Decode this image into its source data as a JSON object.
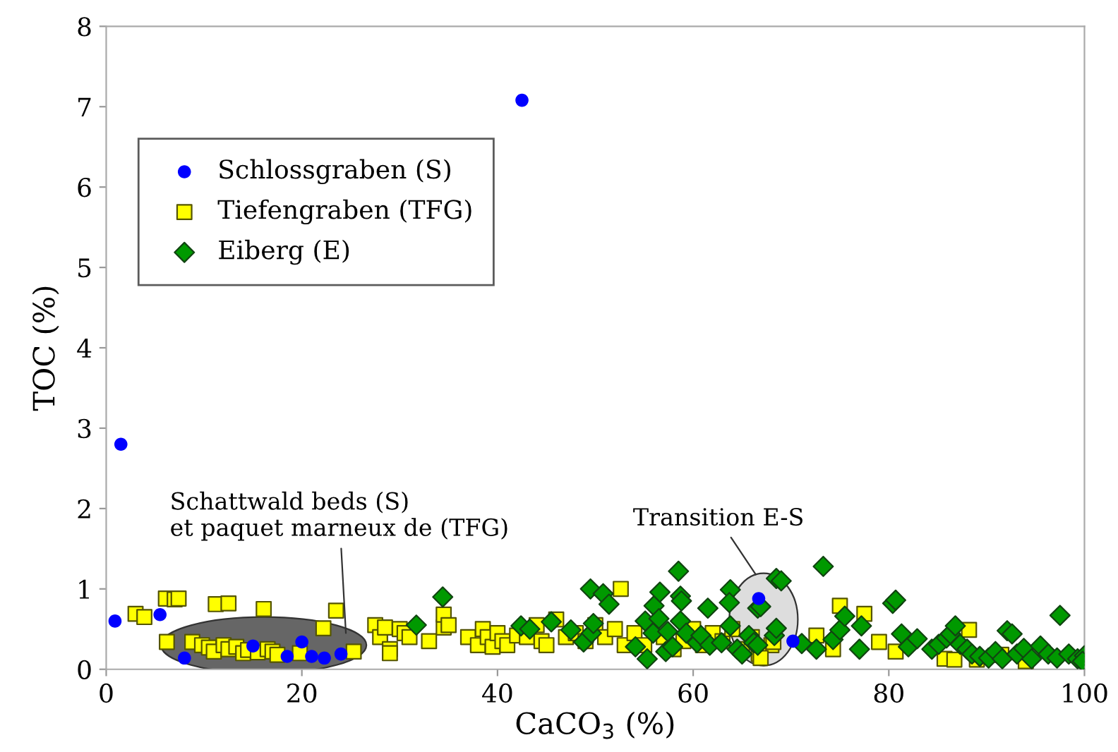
{
  "chart_data": {
    "type": "scatter",
    "xlabel": "CaCO$_{3}$ (%)",
    "ylabel": "TOC (%)",
    "xlim": [
      0,
      100
    ],
    "ylim": [
      0,
      8
    ],
    "xticks": [
      0,
      20,
      40,
      60,
      80,
      100
    ],
    "yticks": [
      0,
      1,
      2,
      3,
      4,
      5,
      6,
      7,
      8
    ],
    "grid": false,
    "legend": "top left",
    "annotations": [
      "Schattwald beds (S)\net paquet marneux de (TFG)",
      "Transition E-S"
    ],
    "series": [
      {
        "name": "Schlossgraben (S)",
        "color": "#0000ff",
        "marker": "circle",
        "x": [
          0.9,
          1.5,
          5.5,
          8,
          15,
          18.5,
          20,
          21,
          22.3,
          24,
          42.5,
          66.7,
          70.2
        ],
        "values": [
          0.6,
          2.8,
          0.68,
          0.14,
          0.29,
          0.16,
          0.34,
          0.16,
          0.14,
          0.19,
          7.08,
          0.88,
          0.35
        ]
      },
      {
        "name": "Tiefengraben (TFG)",
        "color": "#ffff00",
        "marker": "square",
        "x": [
          3.0,
          3.9,
          6.1,
          7.0,
          7.4,
          6.2,
          11.2,
          12.5,
          16.1,
          23.5,
          22.2,
          25.3,
          8.8,
          9.8,
          10.5,
          11,
          12,
          12.5,
          13.3,
          14,
          14.5,
          15.5,
          16.5,
          17,
          17.5,
          19.8,
          27.5,
          28,
          28.5,
          29,
          29,
          30,
          30.5,
          31,
          33,
          34.5,
          34.5,
          35,
          37,
          38,
          38.5,
          39,
          39.5,
          40,
          40.5,
          41,
          42,
          43,
          44,
          44.5,
          45,
          46,
          47,
          48,
          49,
          50,
          51,
          52,
          53,
          52.6,
          54,
          55,
          57,
          58,
          59,
          60,
          61,
          62,
          63,
          64,
          65,
          66,
          68,
          66.7,
          66.9,
          68.2,
          75,
          77.5,
          72.6,
          74.3,
          79,
          80.7,
          88.2,
          85.7,
          86.7,
          89,
          91.5,
          94
        ],
        "values": [
          0.69,
          0.65,
          0.88,
          0.87,
          0.88,
          0.34,
          0.81,
          0.82,
          0.75,
          0.73,
          0.51,
          0.22,
          0.34,
          0.3,
          0.27,
          0.22,
          0.3,
          0.25,
          0.28,
          0.2,
          0.24,
          0.21,
          0.25,
          0.22,
          0.18,
          0.2,
          0.55,
          0.4,
          0.52,
          0.25,
          0.2,
          0.5,
          0.45,
          0.4,
          0.35,
          0.52,
          0.68,
          0.55,
          0.4,
          0.3,
          0.5,
          0.4,
          0.28,
          0.45,
          0.35,
          0.3,
          0.42,
          0.4,
          0.55,
          0.35,
          0.3,
          0.62,
          0.4,
          0.45,
          0.35,
          0.55,
          0.4,
          0.5,
          0.3,
          1.0,
          0.45,
          0.3,
          0.4,
          0.25,
          0.35,
          0.5,
          0.3,
          0.45,
          0.35,
          0.5,
          0.25,
          0.4,
          0.3,
          0.19,
          0.14,
          0.34,
          0.79,
          0.69,
          0.42,
          0.25,
          0.34,
          0.22,
          0.49,
          0.13,
          0.12,
          0.12,
          0.18,
          0.1
        ]
      },
      {
        "name": "Eiberg (E)",
        "color": "#009900",
        "marker": "diamond",
        "x": [
          31.7,
          34.4,
          42.4,
          43.3,
          45.5,
          47.5,
          48.8,
          49.5,
          50.8,
          51.4,
          49.6,
          49.8,
          54.1,
          55.1,
          55.3,
          55.9,
          56.0,
          56.6,
          56.5,
          57.2,
          57.4,
          57.9,
          58.5,
          58.7,
          58.8,
          58.7,
          59.3,
          60.4,
          60.8,
          61.5,
          61.7,
          62.9,
          63.8,
          63.7,
          63.8,
          64.5,
          65,
          65.7,
          66.2,
          66.6,
          66.6,
          68.5,
          69,
          73.3,
          66.9,
          68.3,
          68.5,
          71.1,
          72.6,
          74.3,
          75,
          75.5,
          77.2,
          77,
          80.4,
          80.7,
          81.3,
          82,
          82.9,
          84.4,
          85.1,
          85.9,
          86.3,
          86.8,
          87.3,
          88,
          88.5,
          89.3,
          90.2,
          90.9,
          91.6,
          92.1,
          92.6,
          93.1,
          93.8,
          94.6,
          95.5,
          96.3,
          97.2,
          97.5,
          98.4,
          99.3,
          100,
          99.8
        ],
        "values": [
          0.55,
          0.9,
          0.54,
          0.5,
          0.59,
          0.49,
          0.34,
          1.0,
          0.94,
          0.81,
          0.45,
          0.57,
          0.28,
          0.6,
          0.13,
          0.45,
          0.79,
          0.96,
          0.63,
          0.22,
          0.47,
          0.28,
          1.22,
          0.91,
          0.85,
          0.6,
          0.45,
          0.33,
          0.42,
          0.76,
          0.3,
          0.33,
          0.99,
          0.83,
          0.54,
          0.25,
          0.19,
          0.42,
          0.33,
          0.3,
          0.76,
          1.13,
          1.1,
          1.28,
          0.78,
          0.42,
          0.51,
          0.32,
          0.25,
          0.37,
          0.49,
          0.66,
          0.54,
          0.25,
          0.82,
          0.86,
          0.44,
          0.28,
          0.38,
          0.25,
          0.31,
          0.39,
          0.44,
          0.54,
          0.31,
          0.25,
          0.19,
          0.16,
          0.14,
          0.22,
          0.13,
          0.48,
          0.44,
          0.19,
          0.26,
          0.13,
          0.29,
          0.19,
          0.14,
          0.67,
          0.19,
          0.13,
          0.17,
          0.1
        ]
      }
    ]
  }
}
